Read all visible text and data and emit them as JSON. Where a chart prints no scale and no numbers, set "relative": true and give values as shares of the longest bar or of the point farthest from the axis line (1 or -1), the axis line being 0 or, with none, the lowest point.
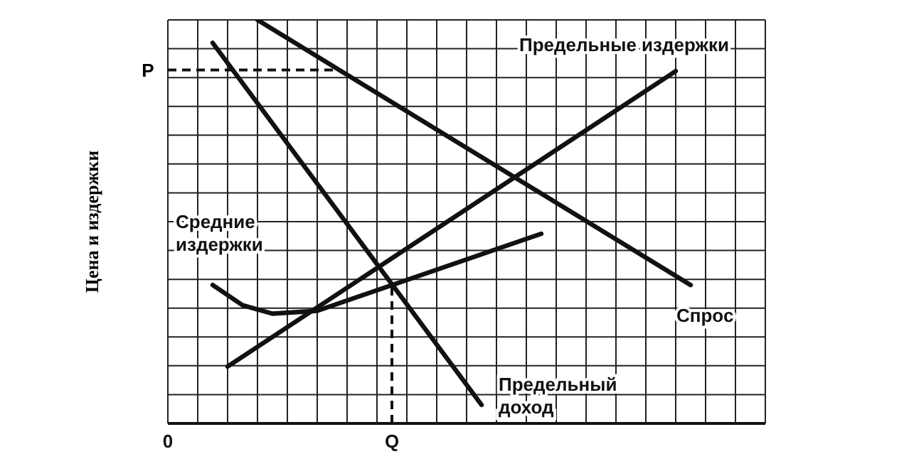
{
  "chart_data": {
    "type": "line",
    "relative": true,
    "ylabel": "Цена и издержки",
    "grid": true,
    "marker": "none",
    "line_style": "solid",
    "categories": [
      "0",
      null,
      null,
      null,
      null,
      null,
      null,
      null,
      null,
      null,
      null,
      null,
      null,
      null,
      null,
      "Q",
      null,
      null,
      null,
      null,
      null,
      null,
      null,
      null,
      null,
      null,
      null,
      null,
      null,
      null,
      null,
      null,
      null,
      null,
      null,
      null,
      null,
      null,
      null,
      null,
      null
    ],
    "series": [
      {
        "name": "Спрос",
        "color": "#111111",
        "values": [
          null,
          null,
          null,
          null,
          null,
          null,
          1.0,
          null,
          null,
          null,
          null,
          null,
          null,
          null,
          null,
          null,
          null,
          null,
          null,
          null,
          null,
          null,
          null,
          null,
          null,
          null,
          null,
          null,
          null,
          null,
          null,
          null,
          null,
          null,
          null,
          0.343,
          null,
          null,
          null,
          null,
          null
        ]
      },
      {
        "name": "Предельный доход",
        "color": "#111111",
        "values": [
          null,
          null,
          null,
          0.943,
          null,
          null,
          null,
          null,
          null,
          null,
          null,
          null,
          null,
          null,
          null,
          null,
          null,
          null,
          null,
          null,
          null,
          0.046,
          null,
          null,
          null,
          null,
          null,
          null,
          null,
          null,
          null,
          null,
          null,
          null,
          null,
          null,
          null,
          null,
          null,
          null,
          null
        ]
      },
      {
        "name": "Предельные издержки",
        "color": "#111111",
        "values": [
          null,
          null,
          null,
          null,
          0.141,
          null,
          null,
          null,
          null,
          null,
          null,
          null,
          null,
          null,
          null,
          null,
          null,
          null,
          null,
          null,
          null,
          null,
          null,
          null,
          null,
          null,
          null,
          null,
          null,
          null,
          null,
          null,
          null,
          null,
          0.873,
          null,
          null,
          null,
          null,
          null,
          null
        ]
      },
      {
        "name": "Средние издержки",
        "color": "#111111",
        "values": [
          null,
          null,
          null,
          0.343,
          null,
          0.293,
          null,
          0.272,
          null,
          null,
          0.279,
          null,
          null,
          null,
          null,
          null,
          null,
          null,
          null,
          null,
          null,
          null,
          null,
          null,
          null,
          0.47,
          null,
          null,
          null,
          null,
          null,
          null,
          null,
          null,
          null,
          null,
          null,
          null,
          null,
          null,
          null
        ]
      }
    ],
    "ref_lines": [
      {
        "axis": "y",
        "value": 0.876,
        "label": "P",
        "line_style": "dashed"
      },
      {
        "axis": "x",
        "value": "Q",
        "line_style": "dashed"
      }
    ]
  }
}
